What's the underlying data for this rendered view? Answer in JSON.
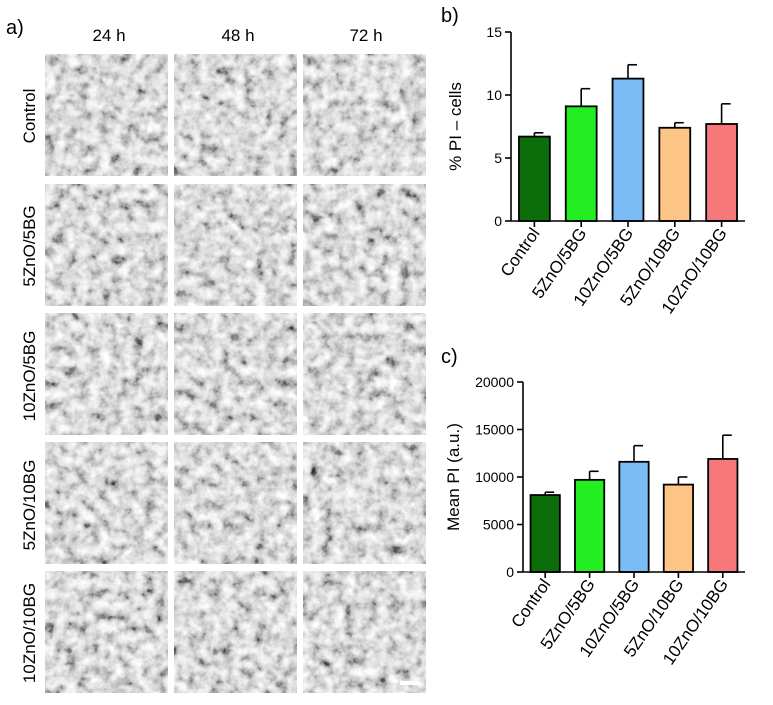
{
  "panel_a": {
    "label": "a)",
    "columns": [
      "24 h",
      "48 h",
      "72 h"
    ],
    "rows": [
      "Control",
      "5ZnO/5BG",
      "10ZnO/5BG",
      "5ZnO/10BG",
      "10ZnO/10BG"
    ],
    "image_description": "phase contrast micrographs of cell cultures",
    "scale_bar": true
  },
  "panel_b": {
    "label": "b)"
  },
  "panel_c": {
    "label": "c)"
  },
  "colors": {
    "Control": "#0b6e0b",
    "5ZnO/5BG": "#22ee22",
    "10ZnO/5BG": "#7bbcf7",
    "5ZnO/10BG": "#fcc586",
    "10ZnO/10BG": "#f7787b"
  },
  "chart_data": [
    {
      "type": "bar",
      "panel": "b)",
      "categories": [
        "Control",
        "5ZnO/5BG",
        "10ZnO/5BG",
        "5ZnO/10BG",
        "10ZnO/10BG"
      ],
      "values": [
        6.7,
        9.1,
        11.3,
        7.4,
        7.7
      ],
      "errors": [
        0.3,
        1.4,
        1.1,
        0.4,
        1.6
      ],
      "ylabel": "% PI – cells",
      "xlabel": "",
      "title": "",
      "ylim": [
        0,
        15
      ],
      "yticks": [
        0,
        5,
        10,
        15
      ]
    },
    {
      "type": "bar",
      "panel": "c)",
      "categories": [
        "Control",
        "5ZnO/5BG",
        "10ZnO/5BG",
        "5ZnO/10BG",
        "10ZnO/10BG"
      ],
      "values": [
        8100,
        9700,
        11600,
        9200,
        11900
      ],
      "errors": [
        300,
        900,
        1700,
        800,
        2500
      ],
      "ylabel": "Mean PI (a.u.)",
      "xlabel": "",
      "title": "",
      "ylim": [
        0,
        20000
      ],
      "yticks": [
        0,
        5000,
        10000,
        15000,
        20000
      ]
    }
  ]
}
